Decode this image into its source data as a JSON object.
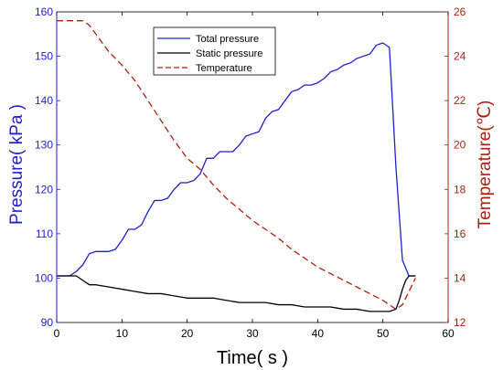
{
  "chart_data": {
    "type": "line",
    "xlabel": "Time( s )",
    "ylabel_left": "Pressure( kPa )",
    "ylabel_right": "Temperature(℃)",
    "xlim": [
      0,
      60
    ],
    "ylim_left": [
      90,
      160
    ],
    "ylim_right": [
      12,
      26
    ],
    "x_ticks": [
      "0",
      "10",
      "20",
      "30",
      "40",
      "50",
      "60"
    ],
    "y_left_ticks": [
      "90",
      "100",
      "110",
      "120",
      "130",
      "140",
      "150",
      "160"
    ],
    "y_right_ticks": [
      "12",
      "14",
      "16",
      "18",
      "20",
      "22",
      "24",
      "26"
    ],
    "grid": false,
    "legend_position": "top-center",
    "colors": {
      "total": "#1f1fd1",
      "static": "#000000",
      "temperature": "#b01e0e",
      "left_axis": "#1f1fd1",
      "right_axis": "#b01e0e"
    },
    "series": [
      {
        "name": "Total pressure",
        "axis": "left",
        "style": "solid",
        "x": [
          0,
          2,
          3,
          4,
          5,
          6,
          7,
          8,
          9,
          10,
          11,
          12,
          13,
          14,
          15,
          16,
          17,
          18,
          19,
          20,
          21,
          22,
          23,
          24,
          25,
          26,
          27,
          28,
          29,
          30,
          31,
          32,
          33,
          34,
          35,
          36,
          37,
          38,
          39,
          40,
          41,
          42,
          43,
          44,
          45,
          46,
          47,
          48,
          49,
          50,
          51,
          52,
          53,
          54,
          55
        ],
        "y": [
          100.5,
          100.5,
          101.5,
          103,
          105.5,
          106,
          106,
          106,
          106.5,
          108.5,
          111,
          111,
          112,
          115,
          117.5,
          117.5,
          118,
          120,
          121.5,
          121.5,
          122,
          123.5,
          127,
          127,
          128.5,
          128.5,
          128.5,
          130,
          132,
          132.5,
          133,
          136,
          137.5,
          138,
          140,
          142,
          142.5,
          143.5,
          143.5,
          144,
          145,
          146.5,
          147,
          148,
          148.5,
          149.5,
          150,
          150.5,
          152.5,
          153,
          152,
          125,
          104,
          100.5,
          100.5
        ]
      },
      {
        "name": "Static pressure",
        "axis": "left",
        "style": "solid",
        "x": [
          0,
          2,
          3,
          4,
          5,
          6,
          8,
          10,
          12,
          14,
          16,
          18,
          20,
          22,
          24,
          26,
          28,
          30,
          32,
          34,
          36,
          38,
          40,
          42,
          44,
          46,
          48,
          50,
          51,
          52,
          52.5,
          53,
          53.5,
          54,
          55
        ],
        "y": [
          100.5,
          100.5,
          100.5,
          99.5,
          98.5,
          98.5,
          98,
          97.5,
          97,
          96.5,
          96.5,
          96,
          95.5,
          95.5,
          95.5,
          95,
          94.5,
          94.5,
          94.5,
          94,
          94,
          93.5,
          93.5,
          93.5,
          93,
          93,
          92.5,
          92.5,
          92.5,
          93,
          95,
          97.5,
          99.5,
          100.5,
          100.5
        ]
      },
      {
        "name": "Temperature",
        "axis": "right",
        "style": "dashed",
        "x": [
          0,
          2,
          4,
          5,
          6,
          8,
          10,
          12,
          14,
          16,
          18,
          20,
          22,
          24,
          26,
          28,
          30,
          32,
          34,
          36,
          38,
          40,
          42,
          44,
          46,
          48,
          50,
          52,
          53,
          54,
          55
        ],
        "y": [
          25.6,
          25.6,
          25.6,
          25.4,
          25,
          24.2,
          23.6,
          22.9,
          22,
          21.1,
          20.2,
          19.4,
          18.9,
          18.2,
          17.6,
          17.1,
          16.6,
          16.2,
          15.8,
          15.3,
          14.9,
          14.5,
          14.2,
          13.9,
          13.6,
          13.3,
          13.0,
          12.6,
          12.8,
          13.4,
          14.0
        ]
      }
    ]
  }
}
